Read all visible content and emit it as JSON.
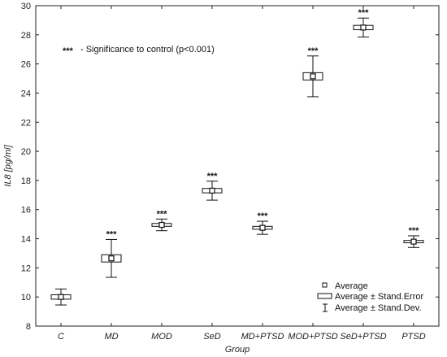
{
  "chart_data": {
    "type": "box",
    "xlabel": "Group",
    "ylabel": "IL8 [pg/ml]",
    "ylim": [
      8,
      30
    ],
    "yticks": [
      8,
      10,
      12,
      14,
      16,
      18,
      20,
      22,
      24,
      26,
      28,
      30
    ],
    "categories": [
      "C",
      "MD",
      "MOD",
      "SeD",
      "MD+PTSD",
      "MOD+PTSD",
      "SeD+PTSD",
      "PTSD"
    ],
    "mean": [
      10.0,
      12.65,
      14.95,
      17.3,
      14.75,
      25.15,
      28.5,
      13.8
    ],
    "se_low": [
      9.85,
      12.4,
      14.85,
      17.15,
      14.65,
      24.9,
      28.35,
      13.72
    ],
    "se_high": [
      10.15,
      12.9,
      15.05,
      17.45,
      14.85,
      25.4,
      28.65,
      13.88
    ],
    "sd_low": [
      9.45,
      11.35,
      14.55,
      16.65,
      14.3,
      23.75,
      27.85,
      13.4
    ],
    "sd_high": [
      10.55,
      13.95,
      15.35,
      17.95,
      15.2,
      26.55,
      29.15,
      14.2
    ],
    "annotations": [
      "",
      "***",
      "***",
      "***",
      "***",
      "***",
      "***",
      "***"
    ],
    "note": {
      "marker": "***",
      "text": "- Significance to control (p<0.001)"
    },
    "legend": {
      "placement": "bottom-right",
      "items": [
        "Average",
        "Average ± Stand.Error",
        "Average ± Stand.Dev."
      ]
    }
  }
}
